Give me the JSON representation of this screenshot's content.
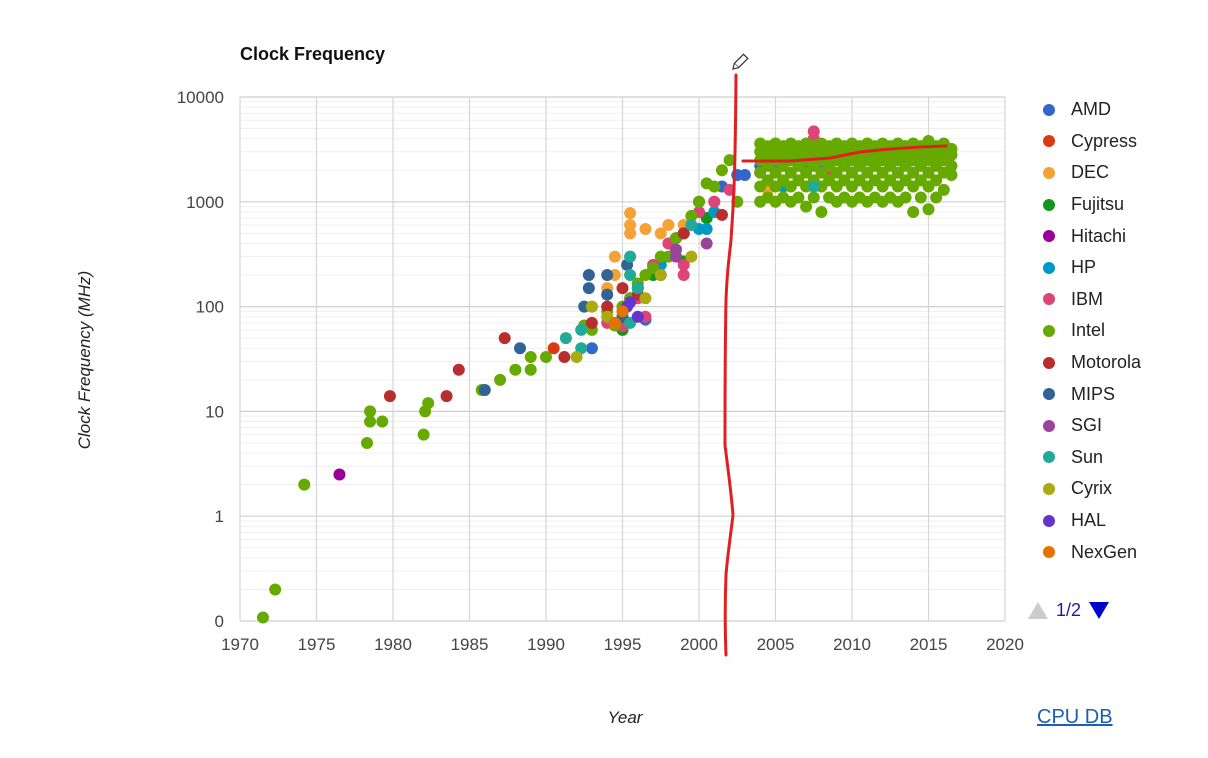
{
  "chart_data": {
    "type": "scatter",
    "title": "Clock Frequency",
    "xlabel": "Year",
    "ylabel": "Clock Frequency (MHz)",
    "xlim": [
      1970,
      2020
    ],
    "ylim": [
      0.1,
      10000
    ],
    "yscale": "log",
    "grid": true,
    "legend_position": "right",
    "x_ticks": [
      "1970",
      "1975",
      "1980",
      "1985",
      "1990",
      "1995",
      "2000",
      "2005",
      "2010",
      "2015",
      "2020"
    ],
    "y_ticks": [
      {
        "value": 10000,
        "label": "10000"
      },
      {
        "value": 1000,
        "label": "1000"
      },
      {
        "value": 100,
        "label": "100"
      },
      {
        "value": 10,
        "label": "10"
      },
      {
        "value": 1,
        "label": "1"
      },
      {
        "value": 0.1,
        "label": "0"
      }
    ],
    "series": [
      {
        "name": "AMD",
        "color": "#3366cc",
        "points": [
          [
            1993,
            40
          ],
          [
            1996.5,
            75
          ],
          [
            1997.5,
            200
          ],
          [
            1999,
            500
          ],
          [
            2000,
            1000
          ],
          [
            2001.5,
            1400
          ],
          [
            2002.5,
            1800
          ],
          [
            2003,
            1800
          ],
          [
            2004,
            2200
          ],
          [
            2005,
            2400
          ],
          [
            2005.5,
            2600
          ],
          [
            2006,
            2800
          ],
          [
            2007,
            2600
          ],
          [
            2008,
            2400
          ],
          [
            2009,
            3000
          ],
          [
            2010,
            3200
          ],
          [
            2011,
            3000
          ]
        ]
      },
      {
        "name": "Cypress",
        "color": "#dc3912",
        "points": [
          [
            1990.5,
            40
          ],
          [
            1995,
            90
          ]
        ]
      },
      {
        "name": "DEC",
        "color": "#f4a235",
        "points": [
          [
            1993,
            100
          ],
          [
            1994,
            150
          ],
          [
            1994.5,
            200
          ],
          [
            1994.5,
            300
          ],
          [
            1995.5,
            300
          ],
          [
            1995.5,
            500
          ],
          [
            1995.5,
            600
          ],
          [
            1995.5,
            780
          ],
          [
            1996.5,
            550
          ],
          [
            1997.5,
            500
          ],
          [
            1998,
            600
          ],
          [
            1999,
            600
          ],
          [
            2000.5,
            700
          ],
          [
            2001,
            1000
          ],
          [
            2004.5,
            1300
          ]
        ]
      },
      {
        "name": "Fujitsu",
        "color": "#109618",
        "points": [
          [
            1995,
            60
          ],
          [
            1997,
            200
          ],
          [
            1999,
            270
          ],
          [
            2000.5,
            700
          ],
          [
            2007,
            2000
          ],
          [
            2009,
            2500
          ]
        ]
      },
      {
        "name": "Hitachi",
        "color": "#990099",
        "points": [
          [
            1976.5,
            2.5
          ]
        ]
      },
      {
        "name": "HP",
        "color": "#0099c6",
        "points": [
          [
            1995.5,
            120
          ],
          [
            1996,
            150
          ],
          [
            1997.5,
            250
          ],
          [
            1998.5,
            450
          ],
          [
            2000,
            550
          ],
          [
            2000.5,
            550
          ],
          [
            2001,
            800
          ],
          [
            2005.5,
            1400
          ],
          [
            2007.5,
            1400
          ]
        ]
      },
      {
        "name": "IBM",
        "color": "#dd4477",
        "points": [
          [
            1994,
            70
          ],
          [
            1995,
            65
          ],
          [
            1996,
            120
          ],
          [
            1996.5,
            80
          ],
          [
            1997,
            250
          ],
          [
            1998,
            400
          ],
          [
            1999,
            200
          ],
          [
            1999,
            250
          ],
          [
            2000,
            800
          ],
          [
            2001,
            1000
          ],
          [
            2002,
            1300
          ],
          [
            2004,
            1900
          ],
          [
            2007.5,
            4700
          ],
          [
            2007.5,
            4000
          ],
          [
            2008.5,
            2000
          ],
          [
            2010,
            3500
          ],
          [
            2010,
            3000
          ]
        ]
      },
      {
        "name": "Intel",
        "color": "#66aa00",
        "points": [
          [
            1971.5,
            0.108
          ],
          [
            1972.3,
            0.2
          ],
          [
            1974.2,
            2
          ],
          [
            1978.3,
            5
          ],
          [
            1978.5,
            8
          ],
          [
            1978.5,
            10
          ],
          [
            1979.3,
            8
          ],
          [
            1982,
            6
          ],
          [
            1982.1,
            10
          ],
          [
            1982.3,
            12
          ],
          [
            1985.8,
            16
          ],
          [
            1987,
            20
          ],
          [
            1988,
            25
          ],
          [
            1989,
            25
          ],
          [
            1989,
            33
          ],
          [
            1990,
            33
          ],
          [
            1992.5,
            66
          ],
          [
            1993,
            60
          ],
          [
            1994,
            90
          ],
          [
            1994.5,
            66
          ],
          [
            1995,
            100
          ],
          [
            1995.5,
            120
          ],
          [
            1996,
            166
          ],
          [
            1996.5,
            200
          ],
          [
            1997,
            233
          ],
          [
            1997.5,
            300
          ],
          [
            1998,
            300
          ],
          [
            1998.5,
            450
          ],
          [
            1999,
            500
          ],
          [
            1999.5,
            733
          ],
          [
            2000,
            1000
          ],
          [
            2000.5,
            1500
          ],
          [
            2001,
            1400
          ],
          [
            2001.5,
            2000
          ],
          [
            2002,
            2500
          ],
          [
            2002.5,
            1000
          ],
          [
            2004,
            1000
          ],
          [
            2004,
            1400
          ],
          [
            2004,
            1900
          ],
          [
            2004,
            2500
          ],
          [
            2004,
            3000
          ],
          [
            2004,
            3600
          ],
          [
            2004.5,
            1100
          ],
          [
            2004.5,
            1600
          ],
          [
            2004.5,
            2200
          ],
          [
            2004.5,
            2800
          ],
          [
            2004.5,
            3400
          ],
          [
            2005,
            1000
          ],
          [
            2005,
            1400
          ],
          [
            2005,
            1900
          ],
          [
            2005,
            2500
          ],
          [
            2005,
            3000
          ],
          [
            2005,
            3600
          ],
          [
            2005.5,
            1100
          ],
          [
            2005.5,
            1600
          ],
          [
            2005.5,
            2200
          ],
          [
            2005.5,
            2800
          ],
          [
            2005.5,
            3400
          ],
          [
            2006,
            1000
          ],
          [
            2006,
            1400
          ],
          [
            2006,
            1900
          ],
          [
            2006,
            2500
          ],
          [
            2006,
            3000
          ],
          [
            2006,
            3600
          ],
          [
            2006.5,
            1100
          ],
          [
            2006.5,
            1600
          ],
          [
            2006.5,
            2200
          ],
          [
            2006.5,
            2800
          ],
          [
            2006.5,
            3400
          ],
          [
            2007,
            900
          ],
          [
            2007,
            1400
          ],
          [
            2007,
            1900
          ],
          [
            2007,
            2500
          ],
          [
            2007,
            3000
          ],
          [
            2007,
            3600
          ],
          [
            2007.5,
            1100
          ],
          [
            2007.5,
            1600
          ],
          [
            2007.5,
            2200
          ],
          [
            2007.5,
            2800
          ],
          [
            2007.5,
            3400
          ],
          [
            2008,
            800
          ],
          [
            2008,
            1400
          ],
          [
            2008,
            1900
          ],
          [
            2008,
            2500
          ],
          [
            2008,
            3000
          ],
          [
            2008,
            3600
          ],
          [
            2008.5,
            1100
          ],
          [
            2008.5,
            1600
          ],
          [
            2008.5,
            2200
          ],
          [
            2008.5,
            2800
          ],
          [
            2008.5,
            3400
          ],
          [
            2009,
            1000
          ],
          [
            2009,
            1400
          ],
          [
            2009,
            1900
          ],
          [
            2009,
            2500
          ],
          [
            2009,
            3000
          ],
          [
            2009,
            3600
          ],
          [
            2009.5,
            1100
          ],
          [
            2009.5,
            1600
          ],
          [
            2009.5,
            2200
          ],
          [
            2009.5,
            2800
          ],
          [
            2009.5,
            3400
          ],
          [
            2010,
            1000
          ],
          [
            2010,
            1400
          ],
          [
            2010,
            1900
          ],
          [
            2010,
            2500
          ],
          [
            2010,
            3000
          ],
          [
            2010,
            3600
          ],
          [
            2010.5,
            1100
          ],
          [
            2010.5,
            1600
          ],
          [
            2010.5,
            2200
          ],
          [
            2010.5,
            2800
          ],
          [
            2010.5,
            3400
          ],
          [
            2011,
            1000
          ],
          [
            2011,
            1400
          ],
          [
            2011,
            1900
          ],
          [
            2011,
            2500
          ],
          [
            2011,
            3000
          ],
          [
            2011,
            3600
          ],
          [
            2011.5,
            1100
          ],
          [
            2011.5,
            1600
          ],
          [
            2011.5,
            2200
          ],
          [
            2011.5,
            2800
          ],
          [
            2011.5,
            3400
          ],
          [
            2012,
            1000
          ],
          [
            2012,
            1400
          ],
          [
            2012,
            1900
          ],
          [
            2012,
            2500
          ],
          [
            2012,
            3000
          ],
          [
            2012,
            3600
          ],
          [
            2012.5,
            1100
          ],
          [
            2012.5,
            1600
          ],
          [
            2012.5,
            2200
          ],
          [
            2012.5,
            2800
          ],
          [
            2012.5,
            3400
          ],
          [
            2013,
            1000
          ],
          [
            2013,
            1400
          ],
          [
            2013,
            1900
          ],
          [
            2013,
            2500
          ],
          [
            2013,
            3000
          ],
          [
            2013,
            3600
          ],
          [
            2013.5,
            1100
          ],
          [
            2013.5,
            1600
          ],
          [
            2013.5,
            2200
          ],
          [
            2013.5,
            2800
          ],
          [
            2013.5,
            3400
          ],
          [
            2014,
            800
          ],
          [
            2014,
            1400
          ],
          [
            2014,
            1900
          ],
          [
            2014,
            2500
          ],
          [
            2014,
            3000
          ],
          [
            2014,
            3600
          ],
          [
            2014.5,
            1100
          ],
          [
            2014.5,
            1600
          ],
          [
            2014.5,
            2200
          ],
          [
            2014.5,
            2800
          ],
          [
            2014.5,
            3400
          ],
          [
            2015,
            850
          ],
          [
            2015,
            1400
          ],
          [
            2015,
            1900
          ],
          [
            2015,
            2500
          ],
          [
            2015,
            3000
          ],
          [
            2015,
            3800
          ],
          [
            2015.5,
            1100
          ],
          [
            2015.5,
            1600
          ],
          [
            2015.5,
            2200
          ],
          [
            2015.5,
            2800
          ],
          [
            2015.5,
            3400
          ],
          [
            2016,
            1300
          ],
          [
            2016,
            1900
          ],
          [
            2016,
            2500
          ],
          [
            2016,
            3000
          ],
          [
            2016,
            3600
          ],
          [
            2016.5,
            1800
          ],
          [
            2016.5,
            2200
          ],
          [
            2016.5,
            2800
          ],
          [
            2016.5,
            3200
          ]
        ]
      },
      {
        "name": "Motorola",
        "color": "#b82e2e",
        "points": [
          [
            1979.8,
            14
          ],
          [
            1983.5,
            14
          ],
          [
            1984.3,
            25
          ],
          [
            1987.3,
            50
          ],
          [
            1991.2,
            33
          ],
          [
            1993,
            70
          ],
          [
            1994,
            100
          ],
          [
            1995,
            150
          ],
          [
            1996,
            130
          ],
          [
            1999,
            500
          ],
          [
            2001.5,
            750
          ]
        ]
      },
      {
        "name": "MIPS",
        "color": "#316395",
        "points": [
          [
            1986,
            16
          ],
          [
            1988.3,
            40
          ],
          [
            1992.5,
            100
          ],
          [
            1992.8,
            200
          ],
          [
            1992.8,
            150
          ],
          [
            1994,
            200
          ],
          [
            1994,
            130
          ],
          [
            1995,
            80
          ],
          [
            1995.3,
            250
          ],
          [
            1996,
            150
          ]
        ]
      },
      {
        "name": "SGI",
        "color": "#994499",
        "points": [
          [
            1998.5,
            300
          ],
          [
            1998.5,
            350
          ],
          [
            2000.5,
            400
          ]
        ]
      },
      {
        "name": "Sun",
        "color": "#22aa99",
        "points": [
          [
            1991.3,
            50
          ],
          [
            1992.3,
            40
          ],
          [
            1992.3,
            60
          ],
          [
            1995.5,
            70
          ],
          [
            1995.5,
            300
          ],
          [
            1995.5,
            200
          ],
          [
            1996,
            150
          ],
          [
            1999.5,
            600
          ],
          [
            2007.5,
            1400
          ]
        ]
      },
      {
        "name": "Cyrix",
        "color": "#aaaa11",
        "points": [
          [
            1992,
            33
          ],
          [
            1993,
            100
          ],
          [
            1994,
            80
          ],
          [
            1996.5,
            120
          ],
          [
            1997.5,
            200
          ],
          [
            1999.5,
            300
          ]
        ]
      },
      {
        "name": "HAL",
        "color": "#6633cc",
        "points": [
          [
            1995.3,
            100
          ],
          [
            1995.5,
            110
          ],
          [
            1996,
            80
          ]
        ]
      },
      {
        "name": "NexGen",
        "color": "#e67300",
        "points": [
          [
            1994.5,
            70
          ],
          [
            1995,
            90
          ]
        ]
      }
    ]
  },
  "legend": {
    "page": "1/2",
    "prev_icon": "triangle-up-icon",
    "next_icon": "triangle-down-icon"
  },
  "link": {
    "label": "CPU DB"
  },
  "annotation": {
    "color": "#e02020",
    "icon": "pencil-icon"
  }
}
